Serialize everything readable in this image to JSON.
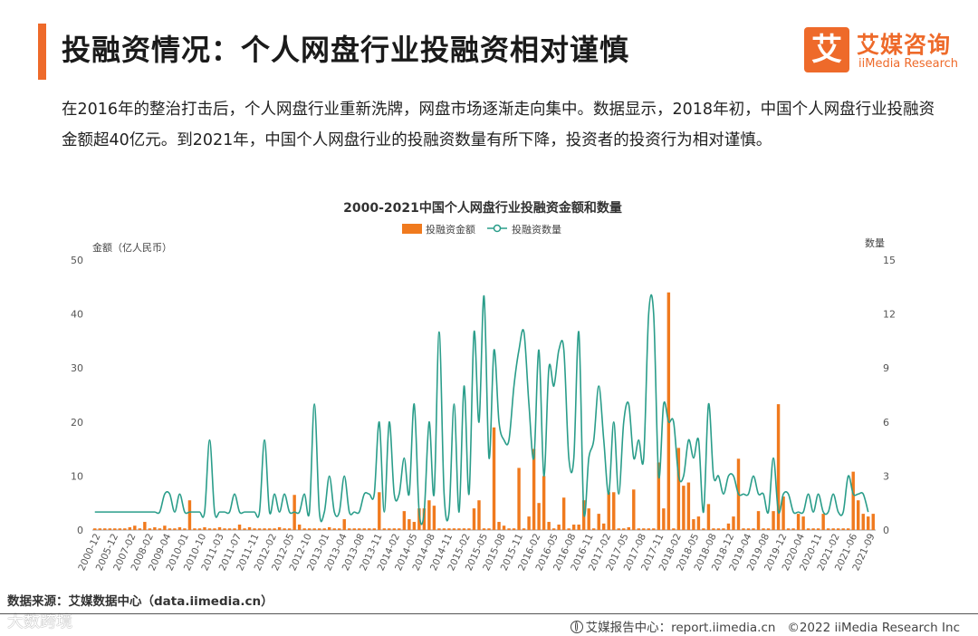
{
  "page": {
    "title": "投融资情况：个人网盘行业投融资相对谨慎",
    "intro": "在2016年的整治打击后，个人网盘行业重新洗牌，网盘市场逐渐走向集中。数据显示，2018年初，中国个人网盘行业投融资金额超40亿元。到2021年，中国个人网盘行业的投融资数量有所下降，投资者的投资行为相对谨慎。"
  },
  "logo": {
    "mark": "艾",
    "name_cn": "艾媒咨询",
    "name_en": "iiMedia Research"
  },
  "source": "数据来源：艾媒数据中心（data.iimedia.cn）",
  "watermark": "大数跨境",
  "footer": {
    "report": "艾媒报告中心：report.iimedia.cn",
    "copyright": "©2022 iiMedia Research Inc",
    "icon": "globe-icon"
  },
  "colors": {
    "accent": "#ee6a2a",
    "bar": "#f07a1e",
    "line": "#2a9d8a"
  },
  "chart_data": {
    "type": "bar",
    "title": "2000-2021中国个人网盘行业投融资金额和数量",
    "legend": [
      "投融资金额",
      "投融资数量"
    ],
    "legend_position": "top-center",
    "ylabel": "金额（亿人民币）",
    "y2label": "数量",
    "ylim": [
      0,
      50
    ],
    "y2lim": [
      0,
      15
    ],
    "yticks": [
      0,
      10,
      20,
      30,
      40,
      50
    ],
    "y2ticks": [
      0,
      3,
      6,
      9,
      12,
      15
    ],
    "xtick_labels": [
      "2000-12",
      "2005-12",
      "2007-02",
      "2008-02",
      "2009-04",
      "2010-01",
      "2010-10",
      "2011-03",
      "2011-07",
      "2011-11",
      "2012-02",
      "2012-05",
      "2012-10",
      "2013-01",
      "2013-04",
      "2013-08",
      "2013-11",
      "2014-02",
      "2014-05",
      "2014-08",
      "2014-11",
      "2015-02",
      "2015-05",
      "2015-08",
      "2015-11",
      "2016-02",
      "2016-05",
      "2016-08",
      "2016-11",
      "2017-02",
      "2017-05",
      "2017-08",
      "2017-11",
      "2018-02",
      "2018-05",
      "2018-08",
      "2018-12",
      "2019-04",
      "2019-08",
      "2019-12",
      "2020-04",
      "2020-11",
      "2021-02",
      "2021-06",
      "2021-09"
    ],
    "grid": false,
    "series": [
      {
        "name": "投融资金额",
        "type": "bar",
        "axis": "left",
        "values": [
          0.3,
          0.3,
          0.3,
          0.3,
          0.3,
          0.3,
          0.3,
          0.5,
          0.8,
          0.3,
          1.5,
          0.3,
          0.5,
          0.3,
          0.8,
          0.3,
          0.3,
          0.5,
          0.3,
          5.5,
          0.3,
          0.3,
          0.5,
          0.3,
          0.3,
          0.5,
          0.3,
          0.3,
          0.3,
          1,
          0.3,
          0.5,
          0.3,
          0.3,
          0.3,
          0.3,
          0.3,
          0.5,
          0.3,
          0.3,
          6.5,
          1,
          0.3,
          0.3,
          0.3,
          0.3,
          0.3,
          0.5,
          0.3,
          0.3,
          2,
          0.3,
          0.3,
          0.3,
          0.3,
          0.3,
          0.3,
          7,
          0.3,
          0.3,
          0.3,
          0.3,
          3.5,
          2,
          1.5,
          4,
          4,
          5.5,
          4.5,
          0.3,
          0.3,
          0.3,
          0.3,
          0.3,
          0.3,
          0.3,
          4,
          5.5,
          0.3,
          0.3,
          19,
          1.5,
          0.8,
          0.3,
          0.3,
          11.5,
          0.3,
          2.5,
          15,
          5,
          10,
          1.5,
          0.3,
          1,
          6,
          0.3,
          1,
          1,
          5.5,
          4,
          0.3,
          3,
          1.2,
          7,
          7,
          0.3,
          0.3,
          0.5,
          7.5,
          0.3,
          0.3,
          0.3,
          0.3,
          12.5,
          4,
          44,
          0.3,
          15.2,
          8.2,
          8.8,
          2,
          2.5,
          0.3,
          4.8,
          0.3,
          0.3,
          0.3,
          1.2,
          2.5,
          13.2,
          0.3,
          0.3,
          0.3,
          3.5,
          0.3,
          0.3,
          3.5,
          23.3,
          6.2,
          0.3,
          0.3,
          3,
          2.5,
          0.3,
          0.3,
          0.3,
          3,
          0.3,
          0.3,
          0.3,
          0.3,
          0.3,
          10.8,
          5.5,
          3,
          2.5,
          3
        ]
      },
      {
        "name": "投融资数量",
        "type": "line",
        "axis": "right",
        "values": [
          1,
          1,
          1,
          1,
          1,
          1,
          1,
          1,
          1,
          1,
          1,
          1,
          1,
          1,
          2,
          2,
          1,
          2,
          1,
          1,
          1,
          1,
          1,
          5,
          1,
          1,
          1,
          1,
          2,
          1,
          1,
          1,
          1,
          1,
          5,
          1,
          2,
          1,
          2,
          1,
          1,
          1,
          2,
          1,
          7,
          1,
          1,
          3,
          1,
          1,
          3,
          1,
          1,
          1,
          2,
          2,
          2,
          6,
          1,
          6,
          2,
          2,
          4,
          2,
          7,
          1,
          1,
          6,
          2,
          11,
          2,
          1,
          7,
          1,
          8,
          2,
          11,
          6,
          13,
          4,
          10,
          6,
          5,
          5,
          8,
          10,
          11,
          7,
          4,
          10,
          3,
          9,
          8,
          10,
          10,
          4,
          4,
          11,
          1,
          4,
          5,
          8,
          5,
          2,
          6,
          2,
          6,
          7,
          4,
          5,
          4,
          12,
          12,
          3,
          7,
          6,
          6,
          3,
          3,
          5,
          4,
          5,
          1,
          7,
          3,
          3,
          2,
          3,
          3,
          2,
          2,
          2,
          3,
          2,
          2,
          1,
          4,
          1,
          2,
          2,
          1,
          1,
          1,
          2,
          1,
          2,
          1,
          1,
          2,
          1,
          1,
          3,
          2,
          2,
          2,
          1
        ]
      }
    ]
  }
}
